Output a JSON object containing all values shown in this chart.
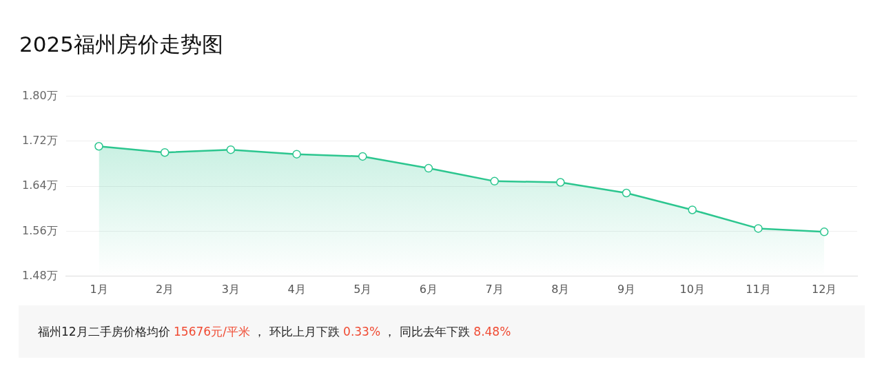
{
  "chart_data": {
    "type": "area",
    "title": "2025福州房价走势图",
    "categories": [
      "1月",
      "2月",
      "3月",
      "4月",
      "5月",
      "6月",
      "7月",
      "8月",
      "9月",
      "10月",
      "11月",
      "12月"
    ],
    "series": [
      {
        "color": "#2cc68f",
        "values": [
          1.711,
          1.7,
          1.705,
          1.697,
          1.693,
          1.672,
          1.649,
          1.647,
          1.628,
          1.598,
          1.565,
          1.559
        ]
      }
    ],
    "ylim": [
      1.48,
      1.8
    ],
    "yticks": [
      {
        "value": 1.48,
        "label": "1.48万"
      },
      {
        "value": 1.56,
        "label": "1.56万"
      },
      {
        "value": 1.64,
        "label": "1.64万"
      },
      {
        "value": 1.72,
        "label": "1.72万"
      },
      {
        "value": 1.8,
        "label": "1.80万"
      }
    ],
    "grid": "y",
    "legend": false,
    "marker": "circle",
    "line_style": "solid",
    "annotations": [
      "福州12月二手房价格均价 ",
      "15676元/平米",
      " ， 环比上月下跌 ",
      "0.33%",
      " ， 同比去年下跌 ",
      "8.48%"
    ]
  }
}
